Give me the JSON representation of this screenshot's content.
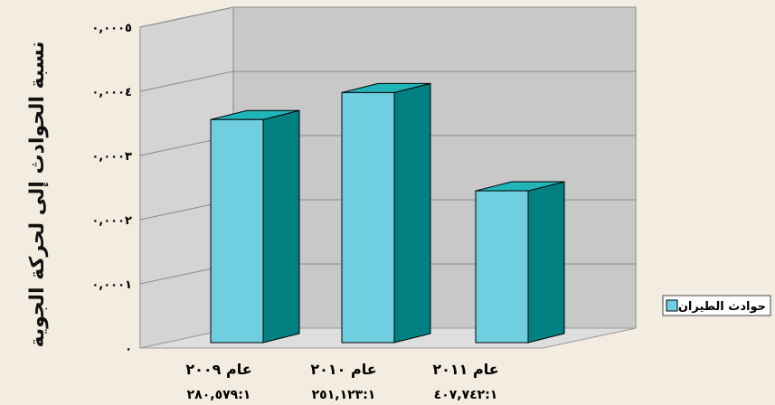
{
  "chart_data": {
    "type": "bar",
    "ylabel": "نسبة الحوادث إلى لحركة الجوية",
    "ylim": [
      0,
      0.0005
    ],
    "y_ticks": [
      {
        "value": 0,
        "label": "٠"
      },
      {
        "value": 0.0001,
        "label": "٠,٠٠٠١"
      },
      {
        "value": 0.0002,
        "label": "٠,٠٠٠٢"
      },
      {
        "value": 0.0003,
        "label": "٠,٠٠٠٣"
      },
      {
        "value": 0.0004,
        "label": "٠,٠٠٠٤"
      },
      {
        "value": 0.0005,
        "label": "٠,٠٠٠٥"
      }
    ],
    "categories": [
      "عام ٢٠٠٩",
      "عام ٢٠١٠",
      "عام ٢٠١١"
    ],
    "ratio_labels": [
      "٢٨٠,٥٧٩:١",
      "٢٥١,١٢٣:١",
      "٤٠٧,٧٤٢:١"
    ],
    "series": [
      {
        "name": "حوادث الطيران",
        "values": [
          0.000356,
          0.000398,
          0.000245
        ]
      }
    ],
    "grid": true,
    "legend_position": "right",
    "colors": {
      "bar_front": "#6fcfe0",
      "bar_side": "#008080",
      "bar_top": "#20b5b8",
      "back_wall": "#c8c8c8",
      "left_wall": "#d4d4d4",
      "floor": "#dedede",
      "background": "#f2ede0"
    }
  }
}
